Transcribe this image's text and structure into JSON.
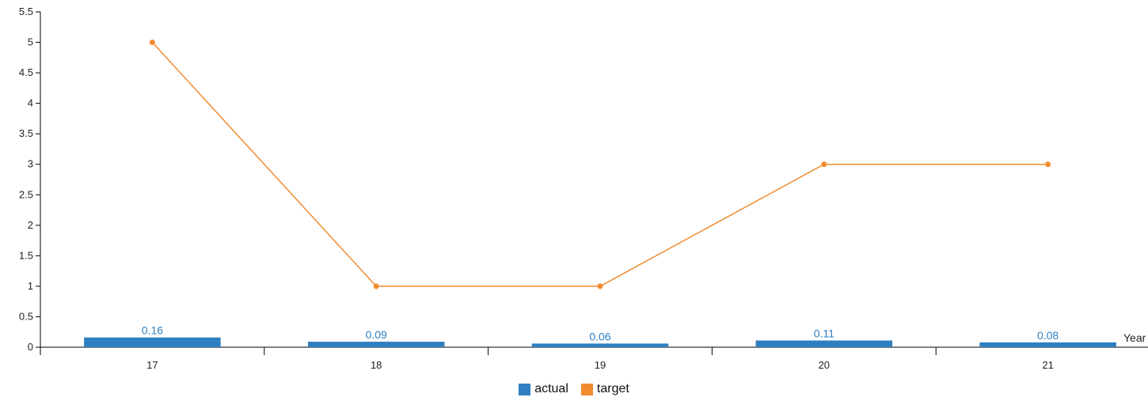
{
  "chart_data": {
    "type": "bar",
    "categories": [
      "17",
      "18",
      "19",
      "20",
      "21"
    ],
    "xlabel": "Year",
    "ylabel": "",
    "ylim": [
      0,
      5.5
    ],
    "yticks": [
      "0",
      "0.5",
      "1",
      "1.5",
      "2",
      "2.5",
      "3",
      "3.5",
      "4",
      "4.5",
      "5",
      "5.5"
    ],
    "series": [
      {
        "name": "actual",
        "kind": "bar",
        "color": "#2f7fc0",
        "values": [
          0.16,
          0.09,
          0.06,
          0.11,
          0.08
        ],
        "data_labels": [
          "0.16",
          "0.09",
          "0.06",
          "0.11",
          "0.08"
        ]
      },
      {
        "name": "target",
        "kind": "line",
        "color": "#f28a2e",
        "values": [
          5,
          1,
          1,
          3,
          3
        ]
      }
    ],
    "legend_position": "bottom-center",
    "grid": false
  }
}
